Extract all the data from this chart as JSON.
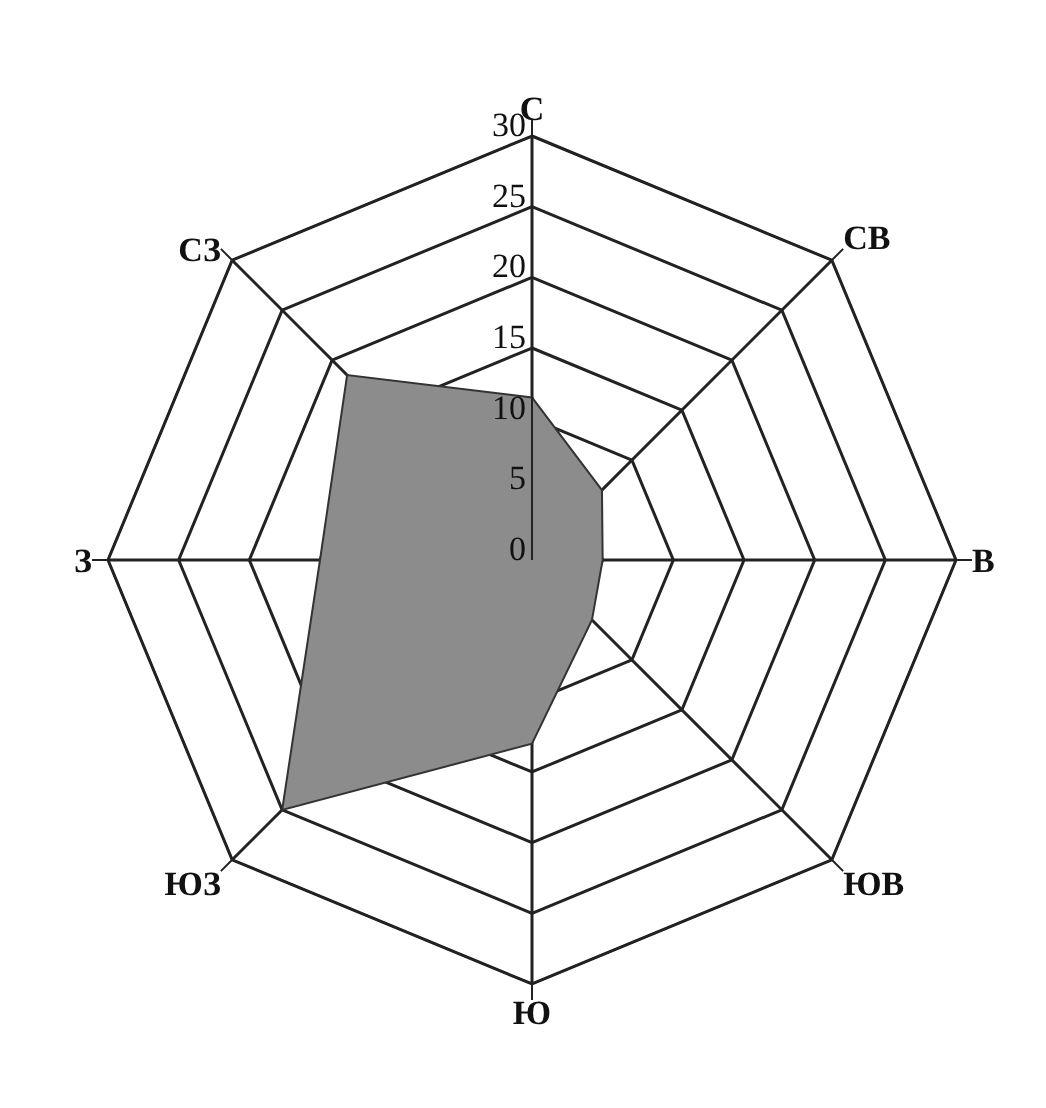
{
  "chart_data": {
    "type": "radar",
    "categories": [
      "С",
      "СВ",
      "В",
      "ЮВ",
      "Ю",
      "ЮЗ",
      "З",
      "СЗ"
    ],
    "series": [
      {
        "color": "#8c8c8c",
        "values": [
          11.5,
          7,
          5,
          6,
          13,
          25,
          15,
          18.5
        ]
      }
    ],
    "ylim": [
      0,
      30
    ],
    "yticks": [
      0,
      5,
      10,
      15,
      20,
      25,
      30
    ],
    "grid": true,
    "legend": false
  }
}
